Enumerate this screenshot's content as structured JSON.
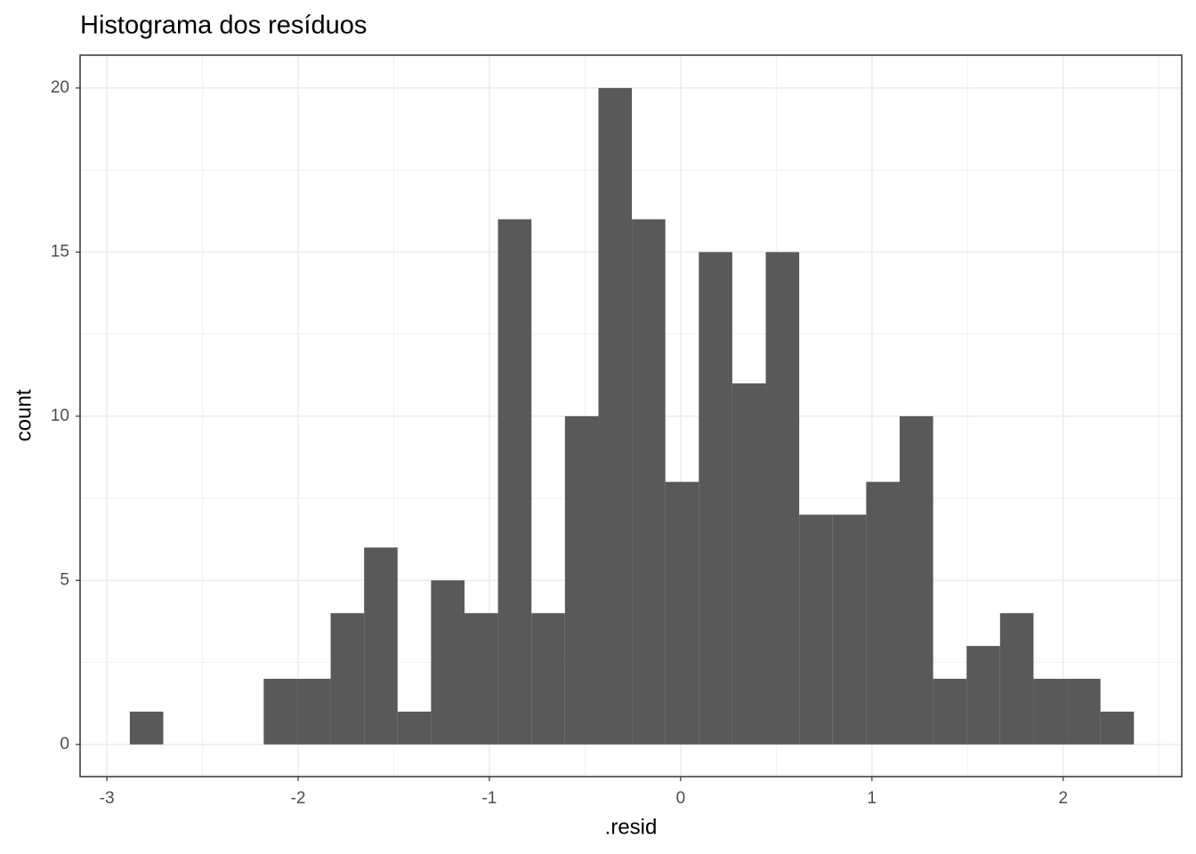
{
  "chart_data": {
    "type": "histogram",
    "title": "Histograma dos resíduos",
    "x_label": ".resid",
    "y_label": "count",
    "bins": [
      -2.88,
      -2.705,
      -2.53,
      -2.355,
      -2.18,
      -2.005,
      -1.83,
      -1.655,
      -1.48,
      -1.305,
      -1.13,
      -0.955,
      -0.78,
      -0.605,
      -0.43,
      -0.255,
      -0.08,
      0.095,
      0.27,
      0.445,
      0.62,
      0.795,
      0.97,
      1.145,
      1.32,
      1.495,
      1.67,
      1.845,
      2.02,
      2.195,
      2.37
    ],
    "values": [
      1,
      0,
      0,
      0,
      2,
      2,
      4,
      6,
      1,
      5,
      4,
      16,
      4,
      10,
      20,
      16,
      8,
      15,
      11,
      15,
      7,
      7,
      8,
      10,
      2,
      3,
      4,
      2,
      2,
      1
    ],
    "color": "#595959",
    "xlim": [
      -3.14,
      2.62
    ],
    "xticks": [
      -3,
      -2,
      -1,
      0,
      1,
      2
    ],
    "ylim": [
      -0.98,
      21.0
    ],
    "yticks": [
      0,
      5,
      10,
      15,
      20
    ],
    "grid": true
  }
}
